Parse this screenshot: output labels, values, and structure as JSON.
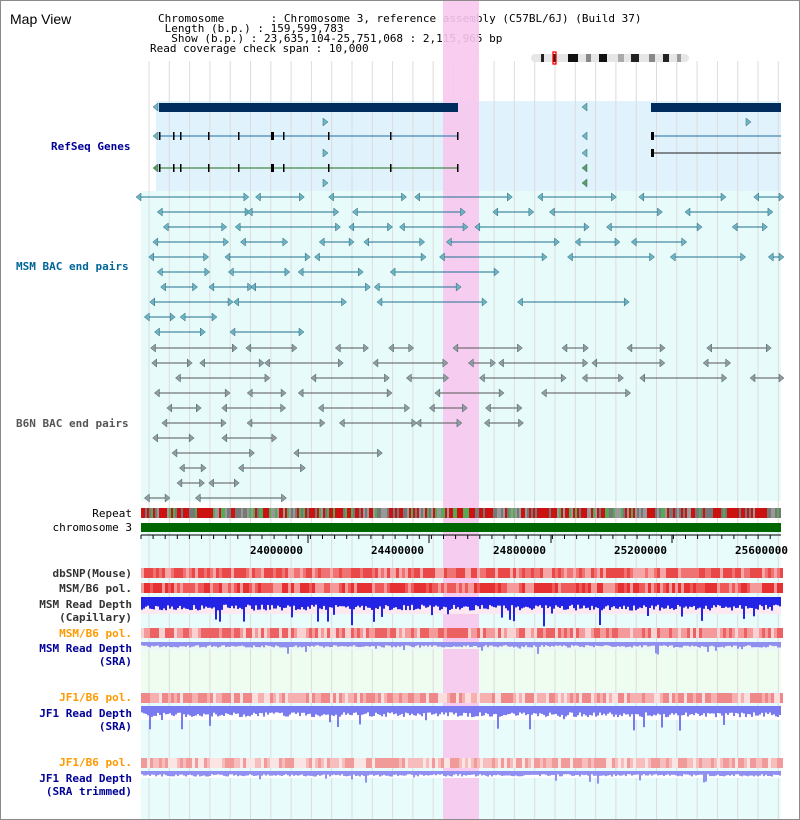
{
  "title": "Map View",
  "info": {
    "chromosome_label": "Chromosome",
    "chromosome_value": "Chromosome 3, reference assembly (C57BL/6J) (Build 37)",
    "length_label": "Length (b.p.)",
    "length_value": "159,599,783",
    "show_label": "Show (b.p.)",
    "show_value": "23,635,104-25,751,068 : 2,115,965 bp",
    "coverage_label": "Read coverage check span",
    "coverage_value": "10,000"
  },
  "tracks": {
    "refseq": "RefSeq Genes",
    "msm_bac": "MSM BAC end pairs",
    "b6n_bac": "B6N BAC end pairs",
    "repeat": "Repeat",
    "chromosome": "chromosome 3",
    "dbsnp": "dbSNP(Mouse)",
    "msm_b6_pol": "MSM/B6 pol.",
    "msm_read_depth_cap_1": "MSM Read Depth",
    "msm_read_depth_cap_2": "(Capillary)",
    "msm_b6_pol_2": "MSM/B6 pol.",
    "msm_read_depth_sra_1": "MSM Read Depth",
    "msm_read_depth_sra_2": "(SRA)",
    "jf1_b6_pol": "JF1/B6 pol.",
    "jf1_read_depth_sra_1": "JF1 Read Depth",
    "jf1_read_depth_sra_2": "(SRA)",
    "jf1_b6_pol_2": "JF1/B6 pol.",
    "jf1_read_depth_trim_1": "JF1 Read Depth",
    "jf1_read_depth_trim_2": "(SRA trimmed)"
  },
  "axis": {
    "ticks": [
      "24000000",
      "24400000",
      "24800000",
      "25200000",
      "25600000"
    ]
  },
  "colors": {
    "refseq_bg": "#e0f2fb",
    "refseq_label": "#000099",
    "msm_label": "#006699",
    "b6n_label": "#555555",
    "highlight": "#f7c8ee",
    "chromosome_bar": "#006600",
    "orange_label": "#ff9900",
    "navy_label": "#000099"
  }
}
